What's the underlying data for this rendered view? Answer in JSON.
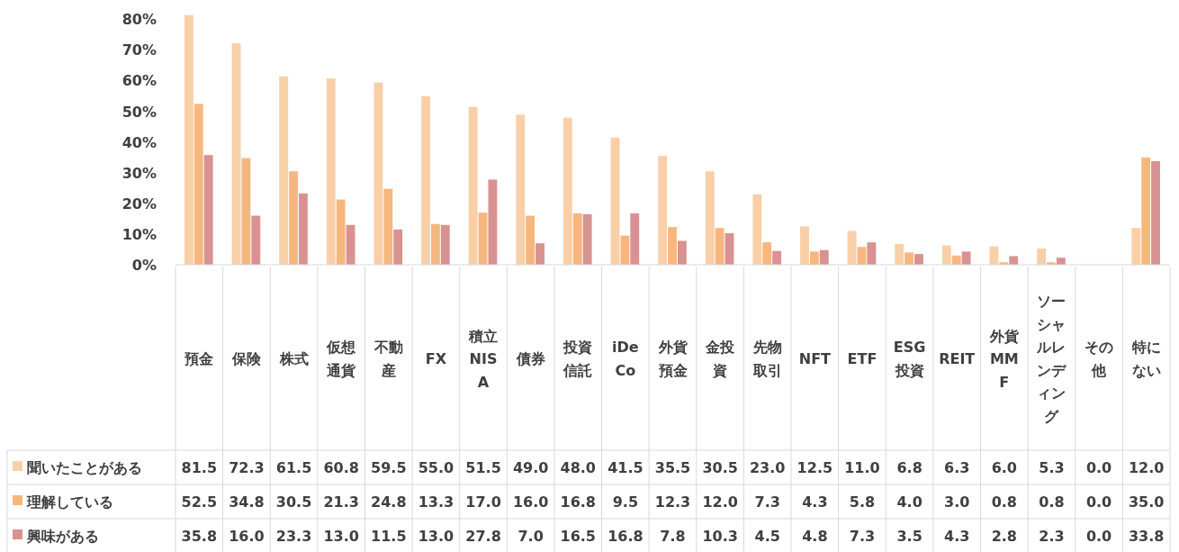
{
  "chart_data": {
    "type": "bar",
    "categories": [
      "預金",
      "保険",
      "株式",
      "仮想通貨",
      "不動産",
      "FX",
      "積立NISA",
      "債券",
      "投資信託",
      "iDeCo",
      "外貨預金",
      "金投資",
      "先物取引",
      "NFT",
      "ETF",
      "ESG投資",
      "REIT",
      "外貨MMF",
      "ソーシャルレンディング",
      "その他",
      "特にない"
    ],
    "series": [
      {
        "name": "聞いたことがある",
        "color": "#f9cfa8",
        "values": [
          81.5,
          72.3,
          61.5,
          60.8,
          59.5,
          55.0,
          51.5,
          49.0,
          48.0,
          41.5,
          35.5,
          30.5,
          23.0,
          12.5,
          11.0,
          6.8,
          6.3,
          6.0,
          5.3,
          0.0,
          12.0
        ],
        "value_labels": [
          "81.5",
          "72.3",
          "61.5",
          "60.8",
          "59.5",
          "55.0",
          "51.5",
          "49.0",
          "48.0",
          "41.5",
          "35.5",
          "30.5",
          "23.0",
          "12.5",
          "11.0",
          "6.8",
          "6.3",
          "6.0",
          "5.3",
          "0.0",
          "12.0"
        ]
      },
      {
        "name": "理解している",
        "color": "#f6b77f",
        "values": [
          52.5,
          34.8,
          30.5,
          21.3,
          24.8,
          13.3,
          17.0,
          16.0,
          16.8,
          9.5,
          12.3,
          12.0,
          7.3,
          4.3,
          5.8,
          4.0,
          3.0,
          0.8,
          0.8,
          0.0,
          35.0
        ],
        "value_labels": [
          "52.5",
          "34.8",
          "30.5",
          "21.3",
          "24.8",
          "13.3",
          "17.0",
          "16.0",
          "16.8",
          "9.5",
          "12.3",
          "12.0",
          "7.3",
          "4.3",
          "5.8",
          "4.0",
          "3.0",
          "0.8",
          "0.8",
          "0.0",
          "35.0"
        ]
      },
      {
        "name": "興味がある",
        "color": "#d99292",
        "values": [
          35.8,
          16.0,
          23.3,
          13.0,
          11.5,
          13.0,
          27.8,
          7.0,
          16.5,
          16.8,
          7.8,
          10.3,
          4.5,
          4.8,
          7.3,
          3.5,
          4.3,
          2.8,
          2.3,
          0.0,
          33.8
        ],
        "value_labels": [
          "35.8",
          "16.0",
          "23.3",
          "13.0",
          "11.5",
          "13.0",
          "27.8",
          "7.0",
          "16.5",
          "16.8",
          "7.8",
          "10.3",
          "4.5",
          "4.8",
          "7.3",
          "3.5",
          "4.3",
          "2.8",
          "2.3",
          "0.0",
          "33.8"
        ]
      }
    ],
    "ylim": [
      0,
      82
    ],
    "yticks": [
      {
        "value": 0,
        "label": "0%"
      },
      {
        "value": 10,
        "label": "10%"
      },
      {
        "value": 20,
        "label": "20%"
      },
      {
        "value": 30,
        "label": "30%"
      },
      {
        "value": 40,
        "label": "40%"
      },
      {
        "value": 50,
        "label": "50%"
      },
      {
        "value": 60,
        "label": "60%"
      },
      {
        "value": 70,
        "label": "70%"
      },
      {
        "value": 80,
        "label": "80%"
      }
    ],
    "legend": "bottom left",
    "grid": false
  }
}
